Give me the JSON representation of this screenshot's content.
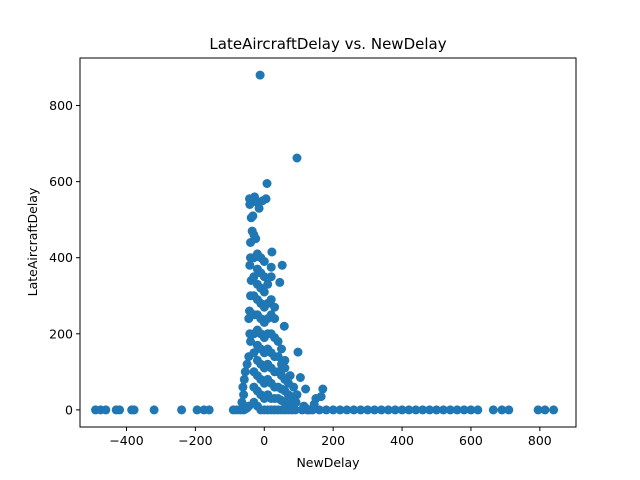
{
  "chart_data": {
    "type": "scatter",
    "title": "LateAircraftDelay vs. NewDelay",
    "xlabel": "NewDelay",
    "ylabel": "LateAircraftDelay",
    "xlim": [
      -535,
      905
    ],
    "ylim": [
      -45,
      925
    ],
    "xticks": [
      -400,
      -200,
      0,
      200,
      400,
      600,
      800
    ],
    "yticks": [
      0,
      200,
      400,
      600,
      800
    ],
    "grid": false,
    "color": "#1f77b4",
    "series": [
      {
        "points": [
          [
            -490,
            0
          ],
          [
            -475,
            0
          ],
          [
            -460,
            0
          ],
          [
            -430,
            0
          ],
          [
            -420,
            0
          ],
          [
            -385,
            0
          ],
          [
            -378,
            0
          ],
          [
            -320,
            0
          ],
          [
            -240,
            0
          ],
          [
            -195,
            0
          ],
          [
            -175,
            0
          ],
          [
            -160,
            0
          ],
          [
            -90,
            0
          ],
          [
            -80,
            0
          ],
          [
            -70,
            0
          ],
          [
            -60,
            0
          ],
          [
            -55,
            2
          ],
          [
            -50,
            5
          ],
          [
            -45,
            10
          ],
          [
            -65,
            20
          ],
          [
            -60,
            40
          ],
          [
            -62,
            60
          ],
          [
            -58,
            80
          ],
          [
            -55,
            100
          ],
          [
            -50,
            120
          ],
          [
            -45,
            140
          ],
          [
            -40,
            180
          ],
          [
            -42,
            200
          ],
          [
            -45,
            240
          ],
          [
            -43,
            260
          ],
          [
            -40,
            300
          ],
          [
            -38,
            340
          ],
          [
            -42,
            380
          ],
          [
            -40,
            400
          ],
          [
            -40,
            440
          ],
          [
            -35,
            470
          ],
          [
            -30,
            460
          ],
          [
            -25,
            450
          ],
          [
            -38,
            505
          ],
          [
            -33,
            510
          ],
          [
            -42,
            540
          ],
          [
            -43,
            555
          ],
          [
            -35,
            548
          ],
          [
            -28,
            560
          ],
          [
            -20,
            545
          ],
          [
            -15,
            530
          ],
          [
            -5,
            550
          ],
          [
            5,
            555
          ],
          [
            -30,
            20
          ],
          [
            -30,
            60
          ],
          [
            -30,
            100
          ],
          [
            -30,
            150
          ],
          [
            -30,
            200
          ],
          [
            -30,
            250
          ],
          [
            -30,
            300
          ],
          [
            -30,
            350
          ],
          [
            -30,
            400
          ],
          [
            -20,
            10
          ],
          [
            -20,
            50
          ],
          [
            -20,
            90
          ],
          [
            -20,
            130
          ],
          [
            -20,
            170
          ],
          [
            -20,
            210
          ],
          [
            -20,
            250
          ],
          [
            -20,
            290
          ],
          [
            -20,
            330
          ],
          [
            -20,
            370
          ],
          [
            -20,
            410
          ],
          [
            -10,
            0
          ],
          [
            -10,
            40
          ],
          [
            -10,
            80
          ],
          [
            -10,
            120
          ],
          [
            -10,
            160
          ],
          [
            -10,
            200
          ],
          [
            -10,
            240
          ],
          [
            -10,
            280
          ],
          [
            -10,
            320
          ],
          [
            -10,
            360
          ],
          [
            -10,
            400
          ],
          [
            0,
            0
          ],
          [
            0,
            30
          ],
          [
            0,
            70
          ],
          [
            0,
            110
          ],
          [
            0,
            150
          ],
          [
            0,
            190
          ],
          [
            0,
            230
          ],
          [
            0,
            270
          ],
          [
            0,
            310
          ],
          [
            0,
            350
          ],
          [
            0,
            390
          ],
          [
            10,
            0
          ],
          [
            10,
            40
          ],
          [
            10,
            80
          ],
          [
            10,
            120
          ],
          [
            10,
            160
          ],
          [
            10,
            200
          ],
          [
            10,
            240
          ],
          [
            10,
            280
          ],
          [
            10,
            330
          ],
          [
            20,
            0
          ],
          [
            20,
            30
          ],
          [
            20,
            70
          ],
          [
            20,
            110
          ],
          [
            20,
            150
          ],
          [
            20,
            200
          ],
          [
            20,
            250
          ],
          [
            20,
            290
          ],
          [
            20,
            350
          ],
          [
            20,
            375
          ],
          [
            22,
            415
          ],
          [
            30,
            0
          ],
          [
            30,
            30
          ],
          [
            30,
            60
          ],
          [
            30,
            100
          ],
          [
            30,
            140
          ],
          [
            30,
            190
          ],
          [
            30,
            240
          ],
          [
            30,
            270
          ],
          [
            40,
            0
          ],
          [
            40,
            30
          ],
          [
            40,
            60
          ],
          [
            40,
            100
          ],
          [
            40,
            140
          ],
          [
            40,
            180
          ],
          [
            45,
            335
          ],
          [
            50,
            0
          ],
          [
            50,
            25
          ],
          [
            50,
            55
          ],
          [
            50,
            90
          ],
          [
            50,
            120
          ],
          [
            50,
            160
          ],
          [
            52,
            380
          ],
          [
            60,
            0
          ],
          [
            60,
            20
          ],
          [
            60,
            50
          ],
          [
            60,
            80
          ],
          [
            60,
            110
          ],
          [
            60,
            130
          ],
          [
            58,
            220
          ],
          [
            70,
            0
          ],
          [
            70,
            15
          ],
          [
            70,
            40
          ],
          [
            70,
            70
          ],
          [
            75,
            90
          ],
          [
            80,
            0
          ],
          [
            80,
            10
          ],
          [
            80,
            35
          ],
          [
            85,
            60
          ],
          [
            90,
            0
          ],
          [
            92,
            20
          ],
          [
            95,
            40
          ],
          [
            98,
            152
          ],
          [
            105,
            85
          ],
          [
            110,
            0
          ],
          [
            115,
            10
          ],
          [
            120,
            5
          ],
          [
            120,
            55
          ],
          [
            125,
            0
          ],
          [
            130,
            0
          ],
          [
            140,
            0
          ],
          [
            145,
            15
          ],
          [
            150,
            30
          ],
          [
            160,
            0
          ],
          [
            165,
            35
          ],
          [
            170,
            55
          ],
          [
            180,
            0
          ],
          [
            200,
            0
          ],
          [
            220,
            0
          ],
          [
            240,
            0
          ],
          [
            260,
            0
          ],
          [
            280,
            0
          ],
          [
            300,
            0
          ],
          [
            320,
            0
          ],
          [
            340,
            0
          ],
          [
            360,
            0
          ],
          [
            380,
            0
          ],
          [
            400,
            0
          ],
          [
            420,
            0
          ],
          [
            440,
            0
          ],
          [
            460,
            0
          ],
          [
            480,
            0
          ],
          [
            500,
            0
          ],
          [
            520,
            0
          ],
          [
            540,
            0
          ],
          [
            560,
            0
          ],
          [
            580,
            0
          ],
          [
            600,
            0
          ],
          [
            620,
            0
          ],
          [
            665,
            0
          ],
          [
            690,
            0
          ],
          [
            710,
            0
          ],
          [
            795,
            0
          ],
          [
            815,
            0
          ],
          [
            840,
            0
          ],
          [
            -12,
            880
          ],
          [
            95,
            662
          ],
          [
            8,
            595
          ]
        ]
      }
    ]
  }
}
